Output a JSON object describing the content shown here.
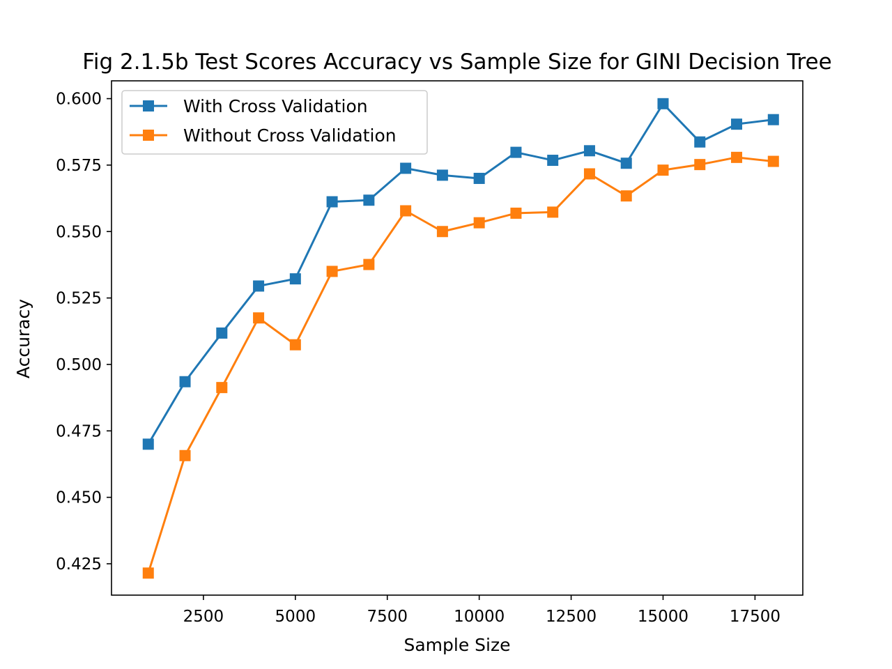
{
  "chart_data": {
    "type": "line",
    "title": "Fig 2.1.5b Test Scores Accuracy vs Sample Size for GINI Decision Tree",
    "xlabel": "Sample Size",
    "ylabel": "Accuracy",
    "xlim": [
      0,
      18800
    ],
    "ylim": [
      0.4132,
      0.6067
    ],
    "xticks": [
      2500,
      5000,
      7500,
      10000,
      12500,
      15000,
      17500
    ],
    "xtick_labels": [
      "2500",
      "5000",
      "7500",
      "10000",
      "12500",
      "15000",
      "17500"
    ],
    "yticks": [
      0.425,
      0.45,
      0.475,
      0.5,
      0.525,
      0.55,
      0.575,
      0.6
    ],
    "ytick_labels": [
      "0.425",
      "0.450",
      "0.475",
      "0.500",
      "0.525",
      "0.550",
      "0.575",
      "0.600"
    ],
    "grid": false,
    "legend_position": "upper-left",
    "x": [
      1000,
      2000,
      3000,
      4000,
      5000,
      6000,
      7000,
      8000,
      9000,
      10000,
      11000,
      12000,
      13000,
      14000,
      15000,
      16000,
      17000,
      18000
    ],
    "series": [
      {
        "name": "With Cross Validation",
        "color": "#1f77b4",
        "marker": "square",
        "values": [
          0.47,
          0.4935,
          0.5118,
          0.5295,
          0.5322,
          0.5612,
          0.5618,
          0.5738,
          0.5712,
          0.57,
          0.5798,
          0.5768,
          0.5804,
          0.5757,
          0.5981,
          0.5837,
          0.5904,
          0.5921
        ]
      },
      {
        "name": "Without Cross Validation",
        "color": "#ff7f0e",
        "marker": "square",
        "values": [
          0.4215,
          0.4657,
          0.4913,
          0.5175,
          0.5074,
          0.535,
          0.5376,
          0.5578,
          0.55,
          0.5533,
          0.5569,
          0.5573,
          0.5717,
          0.5634,
          0.5731,
          0.5752,
          0.5779,
          0.5764
        ]
      }
    ]
  }
}
